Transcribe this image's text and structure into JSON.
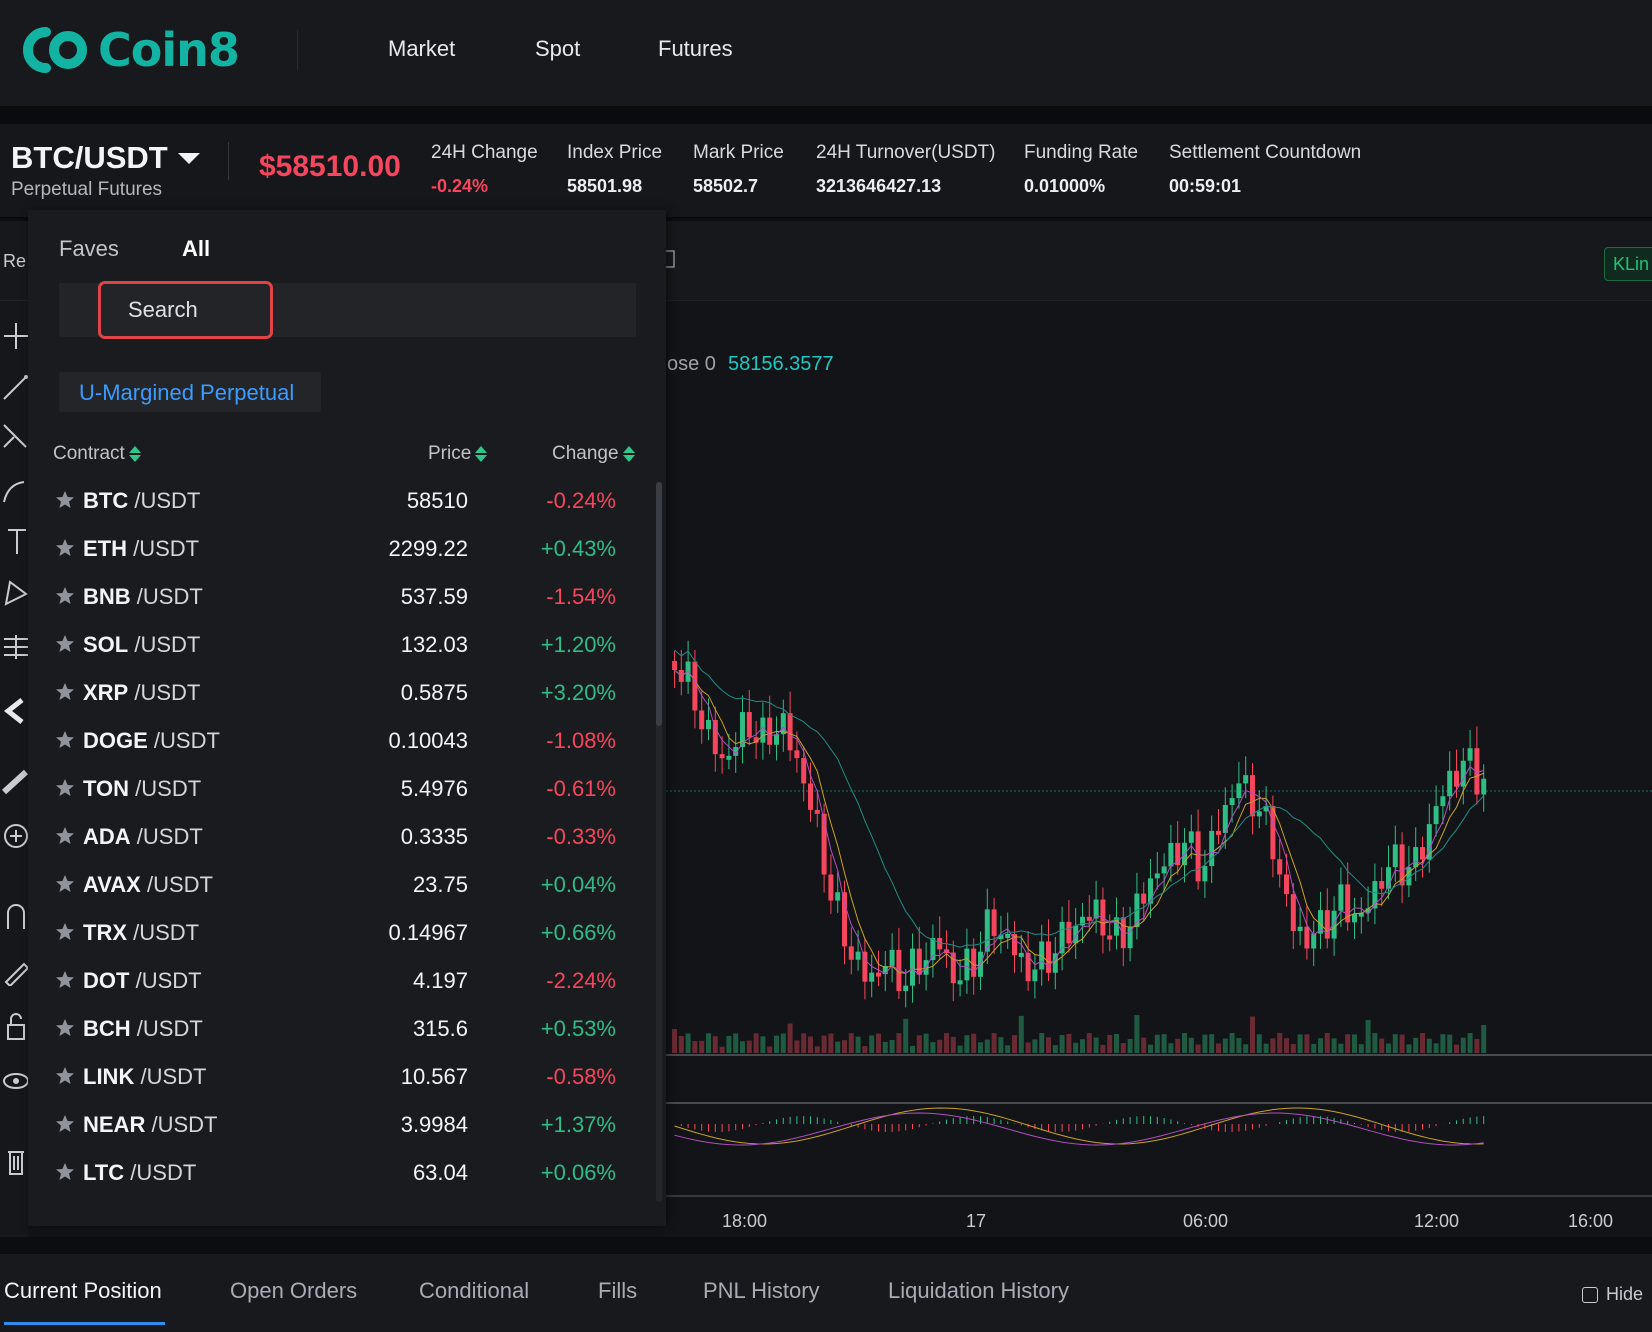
{
  "brand": {
    "name": "Coin8",
    "color": "#12b3a3"
  },
  "nav": [
    "Market",
    "Spot",
    "Futures"
  ],
  "ticker": {
    "pair": "BTC/USDT",
    "subtitle": "Perpetual Futures",
    "last_price": "$58510.00",
    "stats": [
      {
        "label": "24H Change",
        "value": "-0.24%",
        "color": "#f6465d"
      },
      {
        "label": "Index Price",
        "value": "58501.98"
      },
      {
        "label": "Mark Price",
        "value": "58502.7"
      },
      {
        "label": "24H Turnover(USDT)",
        "value": "3213646427.13"
      },
      {
        "label": "Funding Rate",
        "value": "0.01000%"
      },
      {
        "label": "Settlement Countdown",
        "value": "00:59:01"
      }
    ]
  },
  "chart": {
    "toolbar_left_fragment": "Re",
    "kline_label": "KLin",
    "close_label": "ose 0",
    "close_value": "58156.3577",
    "time_labels": [
      "18:00",
      "17",
      "06:00",
      "12:00",
      "16:00"
    ]
  },
  "panel": {
    "tabs": {
      "faves": "Faves",
      "all": "All"
    },
    "search_placeholder": "Search",
    "market_chip": "U-Margined Perpetual",
    "columns": {
      "contract": "Contract",
      "price": "Price",
      "change": "Change"
    },
    "rows": [
      {
        "base": "BTC",
        "quote": "/USDT",
        "price": "58510",
        "change": "-0.24%",
        "dir": "down"
      },
      {
        "base": "ETH",
        "quote": "/USDT",
        "price": "2299.22",
        "change": "+0.43%",
        "dir": "up"
      },
      {
        "base": "BNB",
        "quote": "/USDT",
        "price": "537.59",
        "change": "-1.54%",
        "dir": "down"
      },
      {
        "base": "SOL",
        "quote": "/USDT",
        "price": "132.03",
        "change": "+1.20%",
        "dir": "up"
      },
      {
        "base": "XRP",
        "quote": "/USDT",
        "price": "0.5875",
        "change": "+3.20%",
        "dir": "up"
      },
      {
        "base": "DOGE",
        "quote": "/USDT",
        "price": "0.10043",
        "change": "-1.08%",
        "dir": "down"
      },
      {
        "base": "TON",
        "quote": "/USDT",
        "price": "5.4976",
        "change": "-0.61%",
        "dir": "down"
      },
      {
        "base": "ADA",
        "quote": "/USDT",
        "price": "0.3335",
        "change": "-0.33%",
        "dir": "down"
      },
      {
        "base": "AVAX",
        "quote": "/USDT",
        "price": "23.75",
        "change": "+0.04%",
        "dir": "up"
      },
      {
        "base": "TRX",
        "quote": "/USDT",
        "price": "0.14967",
        "change": "+0.66%",
        "dir": "up"
      },
      {
        "base": "DOT",
        "quote": "/USDT",
        "price": "4.197",
        "change": "-2.24%",
        "dir": "down"
      },
      {
        "base": "BCH",
        "quote": "/USDT",
        "price": "315.6",
        "change": "+0.53%",
        "dir": "up"
      },
      {
        "base": "LINK",
        "quote": "/USDT",
        "price": "10.567",
        "change": "-0.58%",
        "dir": "down"
      },
      {
        "base": "NEAR",
        "quote": "/USDT",
        "price": "3.9984",
        "change": "+1.37%",
        "dir": "up"
      },
      {
        "base": "LTC",
        "quote": "/USDT",
        "price": "63.04",
        "change": "+0.06%",
        "dir": "up"
      }
    ]
  },
  "bottom_tabs": [
    "Current Position",
    "Open Orders",
    "Conditional",
    "Fills",
    "PNL History",
    "Liquidation History"
  ],
  "hide_label": "Hide",
  "colors": {
    "up": "#2ebd85",
    "down": "#f6465d",
    "accent": "#3b9cff",
    "highlight": "#e0434a"
  }
}
